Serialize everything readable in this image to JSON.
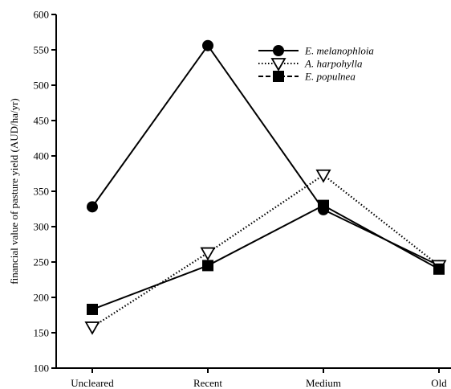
{
  "chart_data": {
    "type": "line",
    "title": "",
    "xlabel": "",
    "ylabel": "financial value of pasture yield (AUD/ha/yr)",
    "categories": [
      "Uncleared",
      "Recent",
      "Medium",
      "Old"
    ],
    "ylim": [
      100,
      600
    ],
    "yticks": [
      100,
      150,
      200,
      250,
      300,
      350,
      400,
      450,
      500,
      550,
      600
    ],
    "grid": false,
    "legend_position": "top-right",
    "series": [
      {
        "name": "E. melanophloia",
        "values": [
          328,
          556,
          324,
          245
        ],
        "marker": "circle",
        "line": "solid"
      },
      {
        "name": "A. harpohylla",
        "values": [
          158,
          263,
          373,
          245
        ],
        "marker": "triangle-down-open",
        "line": "dotted"
      },
      {
        "name": "E. populnea",
        "values": [
          183,
          245,
          330,
          240
        ],
        "marker": "square",
        "line": "solid"
      }
    ]
  }
}
